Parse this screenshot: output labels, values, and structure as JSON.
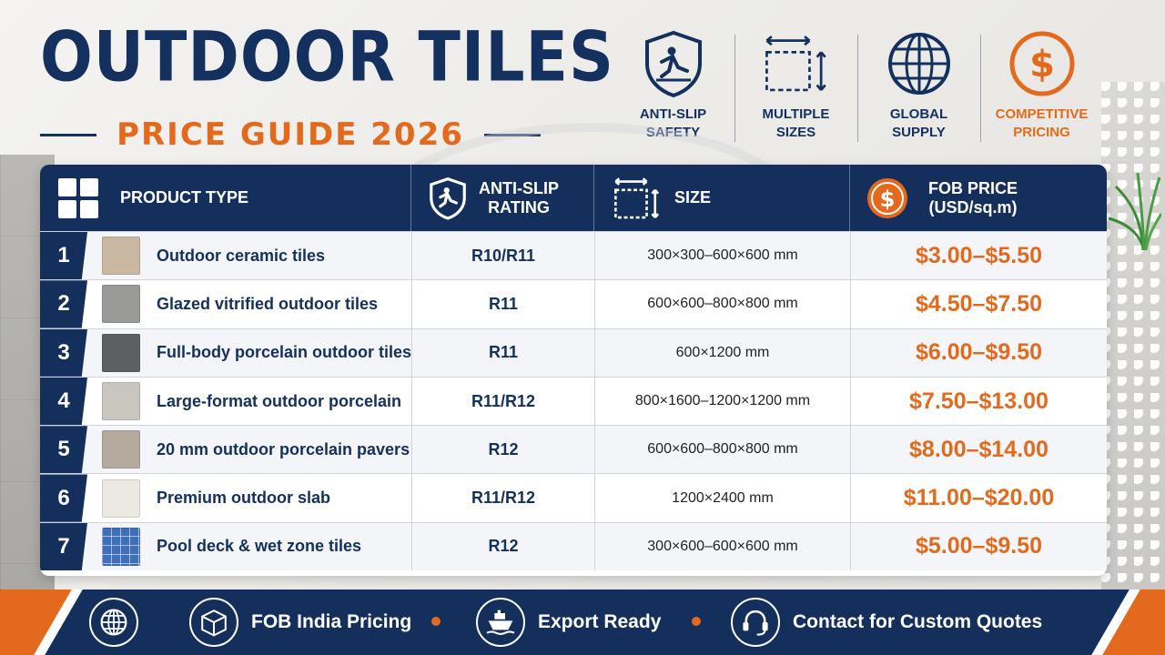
{
  "header": {
    "title": "OUTDOOR TILES",
    "subtitle": "PRICE GUIDE 2026"
  },
  "features": [
    {
      "label": "ANTI-SLIP\nSAFETY",
      "icon": "slip-shield-icon"
    },
    {
      "label": "MULTIPLE\nSIZES",
      "icon": "resize-icon"
    },
    {
      "label": "GLOBAL\nSUPPLY",
      "icon": "globe-icon"
    },
    {
      "label": "COMPETITIVE\nPRICING",
      "icon": "dollar-circle-icon"
    }
  ],
  "table": {
    "headers": {
      "product": "PRODUCT TYPE",
      "rating": "ANTI-SLIP\nRATING",
      "size": "SIZE",
      "price": "FOB PRICE\n(USD/sq.m)"
    },
    "rows": [
      {
        "num": "1",
        "name": "Outdoor ceramic tiles",
        "rating": "R10/R11",
        "size": "300×300–600×600 mm",
        "price": "$3.00–$5.50",
        "swatch": "#c8b8a2"
      },
      {
        "num": "2",
        "name": "Glazed vitrified outdoor tiles",
        "rating": "R11",
        "size": "600×600–800×800 mm",
        "price": "$4.50–$7.50",
        "swatch": "#9a9a98"
      },
      {
        "num": "3",
        "name": "Full-body porcelain outdoor tiles",
        "rating": "R11",
        "size": "600×1200 mm",
        "price": "$6.00–$9.50",
        "swatch": "#5e5f61"
      },
      {
        "num": "4",
        "name": "Large-format outdoor porcelain",
        "rating": "R11/R12",
        "size": "800×1600–1200×1200 mm",
        "price": "$7.50–$13.00",
        "swatch": "#c9c6c0"
      },
      {
        "num": "5",
        "name": "20 mm outdoor porcelain pavers",
        "rating": "R12",
        "size": "600×600–800×800 mm",
        "price": "$8.00–$14.00",
        "swatch": "#b3a99c"
      },
      {
        "num": "6",
        "name": "Premium outdoor slab",
        "rating": "R11/R12",
        "size": "1200×2400 mm",
        "price": "$11.00–$20.00",
        "swatch": "#ece9e2"
      },
      {
        "num": "7",
        "name": "Pool deck & wet zone tiles",
        "rating": "R12",
        "size": "300×600–600×600 mm",
        "price": "$5.00–$9.50",
        "swatch": "#3f6fb8"
      }
    ]
  },
  "footer": {
    "items": [
      {
        "label": "",
        "icon": "globe-icon"
      },
      {
        "label": "FOB India Pricing",
        "icon": "box-icon"
      },
      {
        "label": "Export Ready",
        "icon": "ship-icon"
      },
      {
        "label": "Contact for Custom Quotes",
        "icon": "headset-icon"
      }
    ]
  },
  "colors": {
    "navy": "#152f5c",
    "orange": "#e36a1c"
  }
}
